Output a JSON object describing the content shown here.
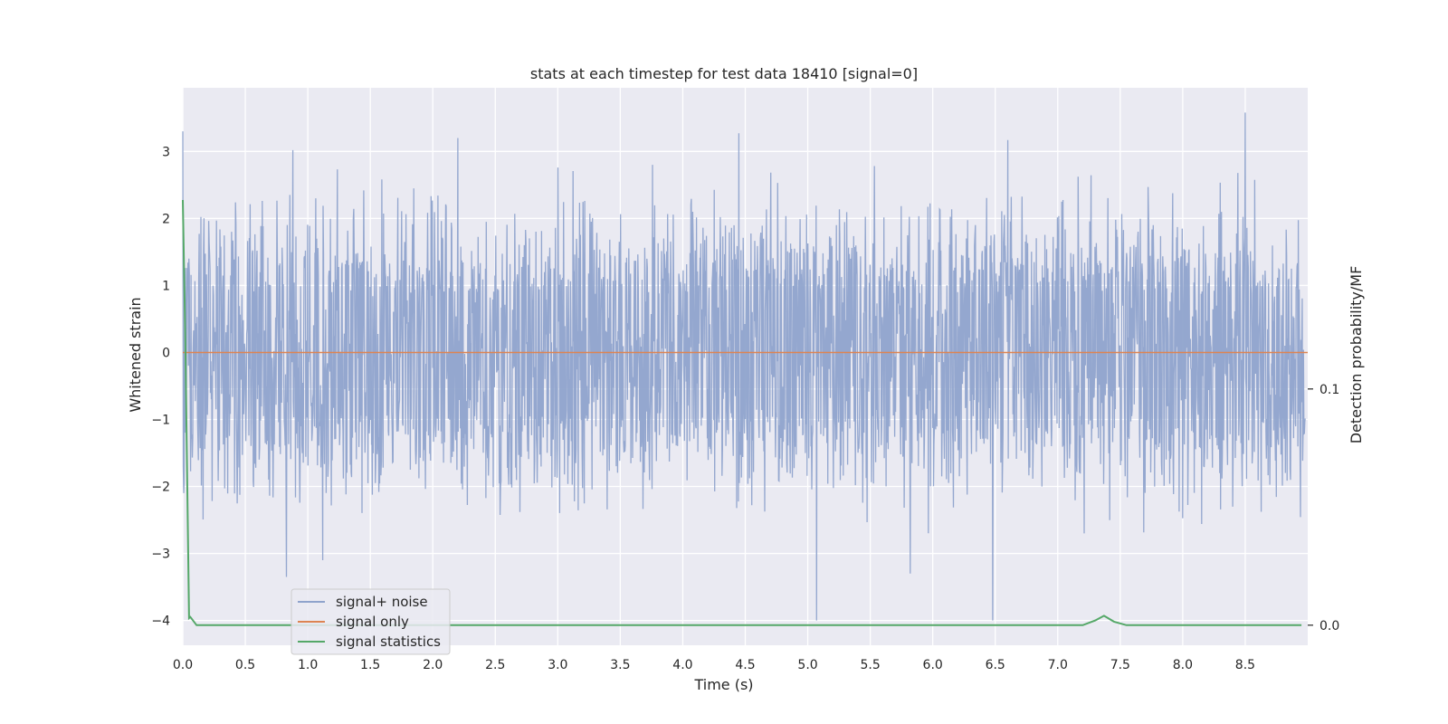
{
  "chart_data": {
    "type": "line",
    "title": "stats at each timestep for test data 18410 [signal=0]",
    "xlabel": "Time (s)",
    "ylabel": "Whitened strain",
    "y2label": "Detection probability/MF",
    "xlim": [
      0.0,
      9.0
    ],
    "ylim": [
      -4.37,
      3.95
    ],
    "y2lim": [
      -0.0085,
      0.2275
    ],
    "xticks": [
      0.0,
      0.5,
      1.0,
      1.5,
      2.0,
      2.5,
      3.0,
      3.5,
      4.0,
      4.5,
      5.0,
      5.5,
      6.0,
      6.5,
      7.0,
      7.5,
      8.0,
      8.5
    ],
    "xtick_labels": [
      "0.0",
      "0.5",
      "1.0",
      "1.5",
      "2.0",
      "2.5",
      "3.0",
      "3.5",
      "4.0",
      "4.5",
      "5.0",
      "5.5",
      "6.0",
      "6.5",
      "7.0",
      "7.5",
      "8.0",
      "8.5"
    ],
    "yticks": [
      3,
      2,
      1,
      0,
      -1,
      -2,
      -3,
      -4
    ],
    "ytick_labels": [
      "3",
      "2",
      "1",
      "0",
      "−1",
      "−2",
      "−3",
      "−4"
    ],
    "y2ticks": [
      0.1,
      0.0
    ],
    "y2tick_labels": [
      "0.1",
      "0.0"
    ],
    "grid": true,
    "legend_position": "lower-left",
    "colors": {
      "background": "#eaeaf2",
      "grid": "#ffffff",
      "noise": "#8fa3cc",
      "signal_only": "#dd8452",
      "statistics": "#55a868"
    },
    "series": [
      {
        "name": "signal+ noise",
        "axis": "left",
        "description_level": "noise amplitude ~1.5 typical, peaks up to about 3.6 and down to about -4",
        "peaks": [
          {
            "x": 0.83,
            "y": -3.35
          },
          {
            "x": 0.88,
            "y": 3.02
          },
          {
            "x": 1.12,
            "y": -3.1
          },
          {
            "x": 2.2,
            "y": 3.2
          },
          {
            "x": 4.45,
            "y": 3.27
          },
          {
            "x": 5.07,
            "y": -4.0
          },
          {
            "x": 5.82,
            "y": -3.3
          },
          {
            "x": 6.48,
            "y": -4.0
          },
          {
            "x": 6.6,
            "y": 3.17
          },
          {
            "x": 8.5,
            "y": 3.58
          }
        ]
      },
      {
        "name": "signal only",
        "axis": "left",
        "x": [
          0.0,
          9.0
        ],
        "y": [
          0.0,
          0.0
        ]
      },
      {
        "name": "signal statistics",
        "axis": "right",
        "x": [
          0.0,
          0.02,
          0.05,
          0.06,
          0.11,
          0.5,
          1.0,
          2.0,
          3.0,
          4.0,
          5.0,
          6.0,
          7.0,
          7.2,
          7.3,
          7.37,
          7.45,
          7.55,
          8.0,
          8.5,
          8.95
        ],
        "y": [
          0.18,
          0.12,
          0.003,
          0.0035,
          0.0,
          0.0,
          0.0,
          0.0,
          0.0,
          0.0,
          0.0,
          0.0,
          0.0,
          0.0,
          0.002,
          0.004,
          0.0015,
          0.0,
          0.0,
          0.0,
          0.0
        ]
      }
    ]
  }
}
